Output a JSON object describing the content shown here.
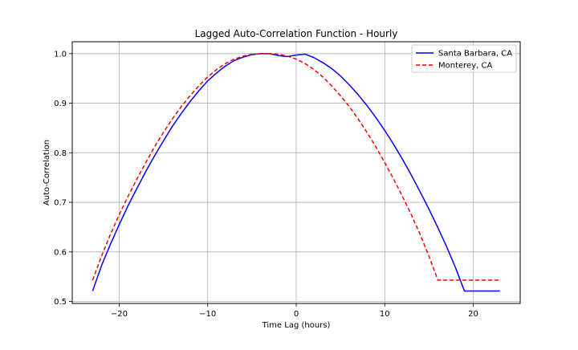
{
  "chart_data": {
    "type": "line",
    "title": "Lagged Auto-Correlation Function - Hourly",
    "xlabel": "Time Lag (hours)",
    "ylabel": "Auto-Correlation",
    "xlim": [
      -25.3,
      25.3
    ],
    "ylim": [
      0.496,
      1.024
    ],
    "x_ticks": [
      -20,
      -10,
      0,
      10,
      20
    ],
    "y_ticks": [
      0.5,
      0.6,
      0.7,
      0.8,
      0.9,
      1.0
    ],
    "x_tick_labels": [
      "−20",
      "−10",
      "0",
      "10",
      "20"
    ],
    "y_tick_labels": [
      "0.5",
      "0.6",
      "0.7",
      "0.8",
      "0.9",
      "1.0"
    ],
    "grid": true,
    "legend_position": "upper right",
    "x": [
      -23,
      -22,
      -21,
      -20,
      -19,
      -18,
      -17,
      -16,
      -15,
      -14,
      -13,
      -12,
      -11,
      -10,
      -9,
      -8,
      -7,
      -6,
      -5,
      -4,
      -3,
      -2,
      -1,
      0,
      1,
      2,
      3,
      4,
      5,
      6,
      7,
      8,
      9,
      10,
      11,
      12,
      13,
      14,
      15,
      16,
      17,
      18,
      19,
      20,
      21,
      22,
      23
    ],
    "series": [
      {
        "name": "Santa Barbara, CA",
        "color": "#0000ff",
        "style": "solid",
        "values": [
          0.521,
          0.572,
          0.615,
          0.655,
          0.693,
          0.728,
          0.762,
          0.794,
          0.824,
          0.853,
          0.879,
          0.903,
          0.925,
          0.945,
          0.961,
          0.975,
          0.986,
          0.993,
          0.998,
          1.0,
          1.0,
          0.996,
          0.994,
          0.997,
          0.999,
          0.992,
          0.982,
          0.97,
          0.955,
          0.937,
          0.917,
          0.895,
          0.871,
          0.845,
          0.817,
          0.787,
          0.755,
          0.721,
          0.686,
          0.649,
          0.61,
          0.568,
          0.521,
          0.521,
          0.521,
          0.521,
          0.521
        ]
      },
      {
        "name": "Monterey, CA",
        "color": "#ff0000",
        "style": "dashed",
        "values": [
          0.543,
          0.591,
          0.635,
          0.675,
          0.712,
          0.747,
          0.78,
          0.812,
          0.841,
          0.868,
          0.893,
          0.915,
          0.935,
          0.953,
          0.968,
          0.98,
          0.989,
          0.995,
          0.999,
          1.0,
          1.0,
          0.999,
          0.995,
          0.989,
          0.98,
          0.968,
          0.953,
          0.935,
          0.915,
          0.893,
          0.868,
          0.841,
          0.812,
          0.78,
          0.747,
          0.712,
          0.675,
          0.635,
          0.591,
          0.543,
          0.543,
          0.543,
          0.543,
          0.543,
          0.543,
          0.543,
          0.543
        ]
      }
    ]
  }
}
